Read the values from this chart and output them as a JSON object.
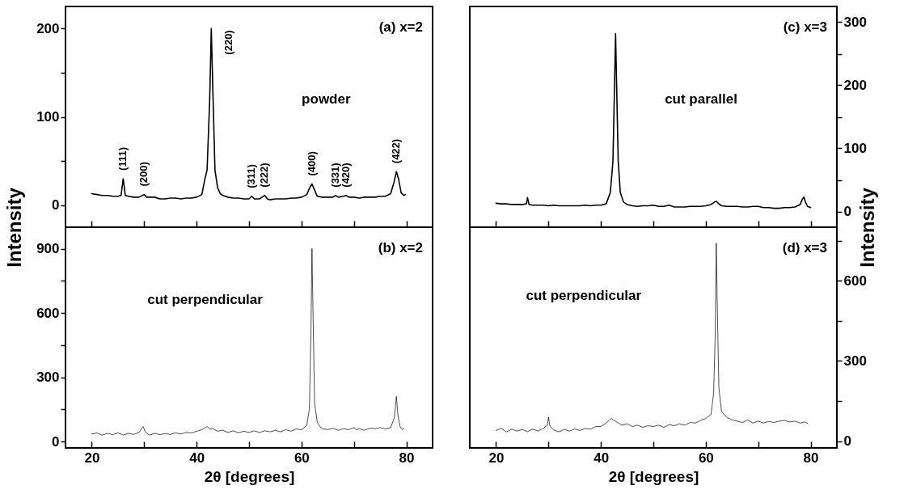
{
  "chart_data": [
    {
      "type": "line",
      "ylabel": "Intensity",
      "xlim": [
        15,
        85
      ],
      "xticks": [
        20,
        {
          "value": 30,
          "label": null
        },
        40,
        {
          "value": 50,
          "label": null
        },
        60,
        {
          "value": 70,
          "label": null
        },
        80
      ],
      "ylim": [
        -25,
        225
      ],
      "yticks": [
        0,
        {
          "value": 50,
          "label": null
        },
        100,
        {
          "value": 150,
          "label": null
        },
        200
      ],
      "tick_labels": "y",
      "grid": false,
      "annotations": [
        "(a) x=2",
        "powder",
        {
          "text": "(111)",
          "x": 26,
          "y": 30
        },
        {
          "text": "(200)",
          "x": 30,
          "y": 12
        },
        {
          "text": "(220)",
          "x": 42.8,
          "y": 200
        },
        {
          "text": "(311)",
          "x": 50.5,
          "y": 10
        },
        {
          "text": "(222)",
          "x": 53,
          "y": 11
        },
        {
          "text": "(400)",
          "x": 62,
          "y": 24
        },
        {
          "text": "(331)",
          "x": 66.5,
          "y": 11
        },
        {
          "text": "(420)",
          "x": 68.5,
          "y": 11
        },
        {
          "text": "(422)",
          "x": 78.1,
          "y": 38
        }
      ],
      "series": [
        {
          "type": "line",
          "color": "#000000",
          "x": [
            20,
            21,
            22,
            23,
            24,
            25,
            25.6,
            26,
            26.4,
            27,
            28,
            29,
            30,
            30.5,
            32,
            33,
            34,
            35,
            36,
            37,
            38,
            39,
            40,
            41,
            41.6,
            42,
            42.5,
            42.8,
            43.1,
            43.5,
            44,
            44.5,
            45,
            46,
            47,
            48,
            49,
            50,
            50.5,
            51,
            52,
            53,
            53.5,
            54,
            55,
            56,
            57,
            58,
            59,
            60,
            61,
            61.6,
            62,
            62.5,
            63,
            64,
            65,
            66,
            66.5,
            67,
            68,
            68.5,
            69,
            70,
            71,
            72,
            73,
            74,
            75,
            76,
            77,
            77.6,
            78.1,
            78.5,
            79,
            79.5,
            79.8
          ],
          "values": [
            13,
            12,
            11,
            11,
            10,
            10,
            11,
            30,
            11,
            10,
            9,
            9,
            12,
            9,
            9,
            7,
            7,
            8,
            8,
            7,
            8,
            8,
            9,
            12,
            30,
            40,
            120,
            200,
            130,
            40,
            20,
            13,
            11,
            9,
            8,
            8,
            7,
            7,
            10,
            7,
            7,
            11,
            7,
            6,
            7,
            7,
            7,
            8,
            8,
            9,
            12,
            20,
            24,
            17,
            10,
            9,
            9,
            9,
            11,
            9,
            10,
            11,
            9,
            9,
            8,
            9,
            9,
            9,
            10,
            10,
            13,
            25,
            38,
            30,
            14,
            11,
            12
          ]
        }
      ]
    },
    {
      "type": "line",
      "xlabel": "2θ [degrees]",
      "xlim": [
        15,
        85
      ],
      "xticks": [
        20,
        {
          "value": 30,
          "label": null
        },
        40,
        {
          "value": 50,
          "label": null
        },
        60,
        {
          "value": 70,
          "label": null
        },
        80
      ],
      "ylim": [
        -30,
        1000
      ],
      "yticks": [
        0,
        {
          "value": 150,
          "label": null
        },
        300,
        {
          "value": 450,
          "label": null
        },
        600,
        {
          "value": 750,
          "label": null
        },
        900
      ],
      "grid": false,
      "annotations": [
        "(b) x=2",
        "cut perpendicular"
      ],
      "series": [
        {
          "type": "line",
          "color": "#000000",
          "x": [
            20,
            21,
            22,
            23,
            24,
            25,
            26,
            27,
            28,
            29,
            29.8,
            30.2,
            31,
            32,
            33,
            34,
            35,
            36,
            37,
            38,
            39,
            40,
            41,
            42,
            42.5,
            43,
            44,
            45,
            46,
            47,
            48,
            49,
            50,
            51,
            52,
            53,
            54,
            55,
            56,
            57,
            58,
            59,
            60,
            61,
            61.5,
            61.8,
            62,
            62.2,
            62.5,
            63,
            63.5,
            64,
            65,
            66,
            67,
            68,
            69,
            70,
            70.5,
            71,
            72,
            73,
            74,
            75,
            76,
            77,
            77.7,
            78.1,
            78.4,
            78.8,
            79.2,
            79.5
          ],
          "values": [
            35,
            40,
            30,
            38,
            32,
            40,
            30,
            38,
            33,
            42,
            70,
            45,
            30,
            38,
            32,
            37,
            33,
            40,
            35,
            42,
            40,
            48,
            55,
            70,
            58,
            60,
            48,
            52,
            42,
            50,
            40,
            48,
            42,
            50,
            42,
            50,
            45,
            52,
            45,
            55,
            48,
            58,
            55,
            75,
            150,
            500,
            900,
            600,
            180,
            90,
            70,
            60,
            55,
            62,
            52,
            60,
            55,
            65,
            55,
            60,
            52,
            62,
            60,
            65,
            58,
            65,
            110,
            210,
            120,
            70,
            55,
            60
          ]
        }
      ]
    },
    {
      "type": "line",
      "y2label": "Intensity",
      "xlim": [
        15,
        85
      ],
      "xticks": [
        20,
        {
          "value": 30,
          "label": null
        },
        40,
        {
          "value": 50,
          "label": null
        },
        60,
        {
          "value": 70,
          "label": null
        },
        80
      ],
      "y2lim": [
        -25,
        325
      ],
      "y2ticks": [
        0,
        {
          "value": 50,
          "label": null
        },
        100,
        {
          "value": 150,
          "label": null
        },
        200,
        {
          "value": 250,
          "label": null
        },
        300
      ],
      "tick_labels": "y",
      "grid": false,
      "annotations": [
        "(c) x=3",
        "cut parallel"
      ],
      "series": [
        {
          "type": "line",
          "axis": "y2",
          "color": "#000000",
          "x": [
            20,
            21,
            22,
            23,
            24,
            25,
            25.8,
            26,
            26.3,
            27,
            28,
            29,
            30,
            31,
            32,
            33,
            34,
            35,
            36,
            37,
            38,
            39,
            40,
            41,
            41.8,
            42.3,
            42.6,
            42.8,
            43.0,
            43.3,
            43.7,
            44.3,
            45,
            46,
            47,
            48,
            49,
            50,
            51,
            52,
            53,
            54,
            55,
            56,
            57,
            58,
            59,
            60,
            61,
            61.7,
            62,
            62.5,
            63,
            64,
            65,
            66,
            67,
            68,
            69,
            70,
            71,
            72,
            73,
            74,
            75,
            76,
            77,
            78,
            78.4,
            78.7,
            79,
            79.4,
            80
          ],
          "values": [
            13,
            12,
            12,
            11,
            11,
            11,
            12,
            22,
            11,
            10,
            10,
            10,
            9,
            10,
            9,
            9,
            9,
            9,
            9,
            10,
            9,
            10,
            10,
            12,
            30,
            80,
            200,
            282,
            200,
            80,
            30,
            15,
            11,
            9,
            8,
            9,
            9,
            10,
            8,
            8,
            10,
            7,
            7,
            7,
            8,
            8,
            8,
            9,
            11,
            15,
            16,
            12,
            9,
            8,
            8,
            8,
            7,
            7,
            8,
            8,
            6,
            6,
            5,
            5,
            6,
            6,
            7,
            11,
            19,
            23,
            15,
            8,
            6
          ]
        }
      ]
    },
    {
      "type": "line",
      "xlabel": "2θ [degrees]",
      "xlim": [
        15,
        85
      ],
      "xticks": [
        20,
        {
          "value": 30,
          "label": null
        },
        40,
        {
          "value": 50,
          "label": null
        },
        60,
        {
          "value": 70,
          "label": null
        },
        80
      ],
      "y2lim": [
        -25,
        800
      ],
      "y2ticks": [
        0,
        {
          "value": 150,
          "label": null
        },
        300,
        {
          "value": 450,
          "label": null
        },
        600,
        {
          "value": 750,
          "label": null
        }
      ],
      "grid": false,
      "annotations": [
        "(d) x=3",
        "cut perpendicular"
      ],
      "series": [
        {
          "type": "line",
          "axis": "y2",
          "color": "#000000",
          "x": [
            20,
            21,
            22,
            23,
            24,
            25,
            26,
            27,
            28,
            29,
            29.8,
            30,
            30.3,
            31,
            32,
            33,
            34,
            35,
            36,
            37,
            38,
            39,
            40,
            41,
            42,
            42.5,
            43,
            44,
            45,
            46,
            47,
            48,
            49,
            50,
            51,
            52,
            53,
            54,
            55,
            56,
            57,
            58,
            59,
            60,
            61,
            61.5,
            61.8,
            62,
            62.2,
            62.5,
            63,
            64,
            65,
            66,
            67,
            68,
            69,
            70,
            71,
            72,
            73,
            74,
            75,
            76,
            77,
            78,
            79,
            79.5
          ],
          "values": [
            40,
            48,
            35,
            45,
            38,
            44,
            36,
            45,
            38,
            48,
            60,
            90,
            55,
            42,
            35,
            44,
            38,
            46,
            40,
            48,
            45,
            55,
            55,
            68,
            85,
            78,
            72,
            60,
            65,
            55,
            60,
            52,
            58,
            55,
            60,
            52,
            62,
            58,
            65,
            60,
            70,
            68,
            78,
            85,
            100,
            180,
            400,
            740,
            500,
            200,
            110,
            90,
            80,
            75,
            70,
            80,
            68,
            75,
            68,
            74,
            70,
            75,
            78,
            72,
            75,
            68,
            72,
            65
          ]
        }
      ]
    }
  ]
}
